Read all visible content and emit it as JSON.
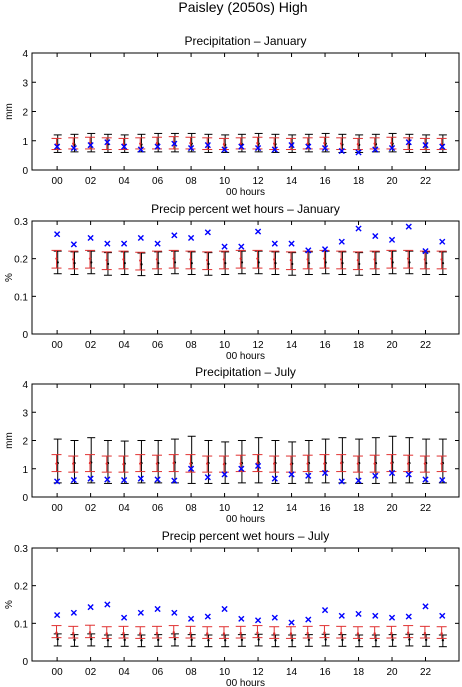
{
  "figure_title": "Paisley (2050s) High",
  "colors": {
    "observed": "#0000ff",
    "model_red": "#e03030",
    "model_black": "#000000",
    "axis": "#000000"
  },
  "chart_data": [
    {
      "type": "errorbar",
      "title": "Precipitation – January",
      "xlabel": "00 hours",
      "ylabel": "mm",
      "xlim": [
        -1.5,
        24
      ],
      "ylim": [
        0,
        4
      ],
      "xticks": [
        "00",
        "02",
        "04",
        "06",
        "08",
        "10",
        "12",
        "14",
        "16",
        "18",
        "20",
        "22"
      ],
      "yticks": [
        "0",
        "1",
        "2",
        "3",
        "4"
      ],
      "hours": [
        0,
        1,
        2,
        3,
        4,
        5,
        6,
        7,
        8,
        9,
        10,
        11,
        12,
        13,
        14,
        15,
        16,
        17,
        18,
        19,
        20,
        21,
        22,
        23
      ],
      "observed": [
        0.8,
        0.75,
        0.85,
        0.95,
        0.8,
        0.7,
        0.8,
        0.9,
        0.75,
        0.85,
        0.7,
        0.8,
        0.75,
        0.7,
        0.85,
        0.8,
        0.75,
        0.65,
        0.6,
        0.7,
        0.75,
        0.95,
        0.85,
        0.8
      ],
      "black_bars": {
        "mean": [
          0.85,
          0.87,
          0.9,
          0.88,
          0.86,
          0.87,
          0.9,
          0.92,
          0.9,
          0.88,
          0.86,
          0.88,
          0.9,
          0.88,
          0.86,
          0.88,
          0.9,
          0.87,
          0.86,
          0.88,
          0.9,
          0.88,
          0.86,
          0.85
        ],
        "low": [
          0.6,
          0.62,
          0.62,
          0.6,
          0.6,
          0.62,
          0.62,
          0.62,
          0.62,
          0.6,
          0.6,
          0.62,
          0.62,
          0.6,
          0.6,
          0.62,
          0.62,
          0.6,
          0.6,
          0.62,
          0.62,
          0.6,
          0.6,
          0.6
        ],
        "high": [
          1.2,
          1.22,
          1.25,
          1.22,
          1.2,
          1.22,
          1.25,
          1.25,
          1.25,
          1.22,
          1.2,
          1.22,
          1.25,
          1.22,
          1.2,
          1.22,
          1.25,
          1.22,
          1.2,
          1.22,
          1.25,
          1.22,
          1.2,
          1.2
        ]
      },
      "red_bars": {
        "mean": [
          0.88,
          0.9,
          0.92,
          0.9,
          0.88,
          0.9,
          0.92,
          0.94,
          0.92,
          0.9,
          0.88,
          0.9,
          0.92,
          0.9,
          0.88,
          0.9,
          0.92,
          0.9,
          0.88,
          0.9,
          0.92,
          0.9,
          0.88,
          0.88
        ],
        "low": [
          0.7,
          0.72,
          0.72,
          0.7,
          0.7,
          0.72,
          0.72,
          0.72,
          0.72,
          0.7,
          0.7,
          0.72,
          0.72,
          0.7,
          0.7,
          0.72,
          0.72,
          0.7,
          0.7,
          0.72,
          0.72,
          0.7,
          0.7,
          0.7
        ],
        "high": [
          1.08,
          1.1,
          1.12,
          1.1,
          1.08,
          1.1,
          1.12,
          1.14,
          1.12,
          1.1,
          1.08,
          1.1,
          1.12,
          1.1,
          1.08,
          1.1,
          1.12,
          1.1,
          1.08,
          1.1,
          1.12,
          1.1,
          1.08,
          1.08
        ]
      }
    },
    {
      "type": "errorbar",
      "title": "Precip percent wet hours – January",
      "xlabel": "00 hours",
      "ylabel": "%",
      "xlim": [
        -1.5,
        24
      ],
      "ylim": [
        0,
        0.3
      ],
      "xticks": [
        "00",
        "02",
        "04",
        "06",
        "08",
        "10",
        "12",
        "14",
        "16",
        "18",
        "20",
        "22"
      ],
      "yticks": [
        "0",
        "0.1",
        "0.2",
        "0.3"
      ],
      "hours": [
        0,
        1,
        2,
        3,
        4,
        5,
        6,
        7,
        8,
        9,
        10,
        11,
        12,
        13,
        14,
        15,
        16,
        17,
        18,
        19,
        20,
        21,
        22,
        23
      ],
      "observed": [
        0.265,
        0.238,
        0.255,
        0.24,
        0.24,
        0.255,
        0.24,
        0.262,
        0.255,
        0.27,
        0.232,
        0.232,
        0.272,
        0.24,
        0.24,
        0.222,
        0.225,
        0.245,
        0.28,
        0.26,
        0.25,
        0.285,
        0.22,
        0.245
      ],
      "black_bars": {
        "mean": [
          0.19,
          0.188,
          0.19,
          0.186,
          0.188,
          0.185,
          0.188,
          0.19,
          0.188,
          0.186,
          0.188,
          0.19,
          0.19,
          0.188,
          0.186,
          0.188,
          0.19,
          0.188,
          0.186,
          0.188,
          0.19,
          0.19,
          0.188,
          0.188
        ],
        "low": [
          0.16,
          0.158,
          0.16,
          0.156,
          0.158,
          0.155,
          0.158,
          0.16,
          0.158,
          0.156,
          0.158,
          0.16,
          0.16,
          0.158,
          0.156,
          0.158,
          0.16,
          0.158,
          0.156,
          0.158,
          0.16,
          0.16,
          0.158,
          0.158
        ],
        "high": [
          0.22,
          0.218,
          0.22,
          0.216,
          0.218,
          0.215,
          0.218,
          0.22,
          0.218,
          0.216,
          0.218,
          0.22,
          0.22,
          0.218,
          0.216,
          0.218,
          0.22,
          0.218,
          0.216,
          0.218,
          0.22,
          0.22,
          0.218,
          0.218
        ]
      },
      "red_bars": {
        "mean": [
          0.2,
          0.198,
          0.2,
          0.196,
          0.198,
          0.195,
          0.198,
          0.2,
          0.198,
          0.196,
          0.198,
          0.2,
          0.2,
          0.198,
          0.196,
          0.198,
          0.2,
          0.198,
          0.196,
          0.198,
          0.2,
          0.2,
          0.198,
          0.198
        ],
        "low": [
          0.175,
          0.173,
          0.175,
          0.171,
          0.173,
          0.17,
          0.173,
          0.175,
          0.173,
          0.171,
          0.173,
          0.175,
          0.175,
          0.173,
          0.171,
          0.173,
          0.175,
          0.173,
          0.171,
          0.173,
          0.175,
          0.175,
          0.173,
          0.173
        ],
        "high": [
          0.222,
          0.22,
          0.222,
          0.218,
          0.22,
          0.217,
          0.22,
          0.222,
          0.22,
          0.218,
          0.22,
          0.222,
          0.222,
          0.22,
          0.218,
          0.22,
          0.222,
          0.22,
          0.218,
          0.22,
          0.222,
          0.222,
          0.22,
          0.22
        ]
      }
    },
    {
      "type": "errorbar",
      "title": "Precipitation – July",
      "xlabel": "00 hours",
      "ylabel": "mm",
      "xlim": [
        -1.5,
        24
      ],
      "ylim": [
        0,
        4
      ],
      "xticks": [
        "00",
        "02",
        "04",
        "06",
        "08",
        "10",
        "12",
        "14",
        "16",
        "18",
        "20",
        "22"
      ],
      "yticks": [
        "0",
        "1",
        "2",
        "3",
        "4"
      ],
      "hours": [
        0,
        1,
        2,
        3,
        4,
        5,
        6,
        7,
        8,
        9,
        10,
        11,
        12,
        13,
        14,
        15,
        16,
        17,
        18,
        19,
        20,
        21,
        22,
        23
      ],
      "observed": [
        0.55,
        0.6,
        0.65,
        0.62,
        0.6,
        0.65,
        0.62,
        0.58,
        1.0,
        0.7,
        0.8,
        1.0,
        1.1,
        0.65,
        0.8,
        0.75,
        0.85,
        0.55,
        0.58,
        0.75,
        0.85,
        0.8,
        0.62,
        0.6
      ],
      "black_bars": {
        "mean": [
          1.2,
          1.2,
          1.22,
          1.2,
          1.18,
          1.2,
          1.2,
          1.22,
          1.2,
          1.2,
          1.18,
          1.2,
          1.22,
          1.2,
          1.18,
          1.2,
          1.2,
          1.22,
          1.2,
          1.2,
          1.22,
          1.2,
          1.2,
          1.2
        ],
        "low": [
          0.5,
          0.48,
          0.5,
          0.48,
          0.48,
          0.5,
          0.5,
          0.5,
          0.48,
          0.48,
          0.48,
          0.5,
          0.5,
          0.48,
          0.48,
          0.5,
          0.5,
          0.5,
          0.48,
          0.48,
          0.5,
          0.5,
          0.48,
          0.5
        ],
        "high": [
          2.05,
          2.0,
          2.1,
          2.0,
          1.98,
          2.0,
          2.0,
          2.05,
          2.15,
          2.0,
          1.95,
          2.0,
          2.1,
          2.0,
          1.95,
          2.0,
          2.05,
          2.1,
          2.05,
          2.1,
          2.15,
          2.1,
          2.05,
          2.05
        ]
      },
      "red_bars": {
        "mean": [
          1.18,
          1.18,
          1.2,
          1.18,
          1.16,
          1.18,
          1.18,
          1.2,
          1.18,
          1.18,
          1.16,
          1.18,
          1.2,
          1.18,
          1.16,
          1.18,
          1.18,
          1.2,
          1.18,
          1.18,
          1.2,
          1.18,
          1.18,
          1.18
        ],
        "low": [
          0.9,
          0.88,
          0.9,
          0.88,
          0.88,
          0.9,
          0.9,
          0.9,
          0.88,
          0.88,
          0.88,
          0.9,
          0.9,
          0.88,
          0.88,
          0.9,
          0.9,
          0.9,
          0.88,
          0.88,
          0.9,
          0.9,
          0.88,
          0.9
        ],
        "high": [
          1.5,
          1.45,
          1.5,
          1.45,
          1.45,
          1.5,
          1.48,
          1.5,
          1.5,
          1.45,
          1.45,
          1.48,
          1.5,
          1.45,
          1.45,
          1.48,
          1.5,
          1.5,
          1.45,
          1.48,
          1.5,
          1.48,
          1.45,
          1.45
        ]
      }
    },
    {
      "type": "errorbar",
      "title": "Precip percent wet hours – July",
      "xlabel": "00 hours",
      "ylabel": "%",
      "xlim": [
        -1.5,
        24
      ],
      "ylim": [
        0,
        0.3
      ],
      "xticks": [
        "00",
        "02",
        "04",
        "06",
        "08",
        "10",
        "12",
        "14",
        "16",
        "18",
        "20",
        "22"
      ],
      "yticks": [
        "0",
        "0.1",
        "0.2",
        "0.3"
      ],
      "hours": [
        0,
        1,
        2,
        3,
        4,
        5,
        6,
        7,
        8,
        9,
        10,
        11,
        12,
        13,
        14,
        15,
        16,
        17,
        18,
        19,
        20,
        21,
        22,
        23
      ],
      "observed": [
        0.122,
        0.128,
        0.143,
        0.15,
        0.115,
        0.128,
        0.138,
        0.128,
        0.112,
        0.118,
        0.138,
        0.112,
        0.108,
        0.115,
        0.102,
        0.11,
        0.135,
        0.12,
        0.125,
        0.12,
        0.115,
        0.118,
        0.145,
        0.12
      ],
      "black_bars": {
        "mean": [
          0.058,
          0.056,
          0.058,
          0.055,
          0.056,
          0.055,
          0.056,
          0.058,
          0.056,
          0.055,
          0.055,
          0.056,
          0.057,
          0.055,
          0.055,
          0.056,
          0.057,
          0.056,
          0.055,
          0.055,
          0.056,
          0.057,
          0.056,
          0.055
        ],
        "low": [
          0.04,
          0.039,
          0.04,
          0.038,
          0.039,
          0.038,
          0.039,
          0.04,
          0.039,
          0.038,
          0.038,
          0.039,
          0.04,
          0.038,
          0.038,
          0.039,
          0.04,
          0.039,
          0.038,
          0.038,
          0.039,
          0.04,
          0.039,
          0.038
        ],
        "high": [
          0.072,
          0.07,
          0.072,
          0.069,
          0.07,
          0.069,
          0.07,
          0.072,
          0.07,
          0.069,
          0.069,
          0.07,
          0.071,
          0.069,
          0.069,
          0.07,
          0.071,
          0.07,
          0.069,
          0.069,
          0.07,
          0.071,
          0.07,
          0.069
        ]
      },
      "red_bars": {
        "mean": [
          0.075,
          0.074,
          0.076,
          0.073,
          0.074,
          0.073,
          0.074,
          0.076,
          0.074,
          0.073,
          0.073,
          0.074,
          0.075,
          0.073,
          0.073,
          0.074,
          0.075,
          0.074,
          0.073,
          0.073,
          0.074,
          0.075,
          0.074,
          0.073
        ],
        "low": [
          0.062,
          0.061,
          0.062,
          0.06,
          0.061,
          0.06,
          0.061,
          0.062,
          0.061,
          0.06,
          0.06,
          0.061,
          0.062,
          0.06,
          0.06,
          0.061,
          0.062,
          0.061,
          0.06,
          0.06,
          0.061,
          0.062,
          0.061,
          0.06
        ],
        "high": [
          0.094,
          0.092,
          0.095,
          0.091,
          0.092,
          0.091,
          0.092,
          0.094,
          0.092,
          0.091,
          0.091,
          0.092,
          0.094,
          0.091,
          0.091,
          0.092,
          0.094,
          0.092,
          0.091,
          0.091,
          0.092,
          0.094,
          0.092,
          0.091
        ]
      }
    }
  ]
}
